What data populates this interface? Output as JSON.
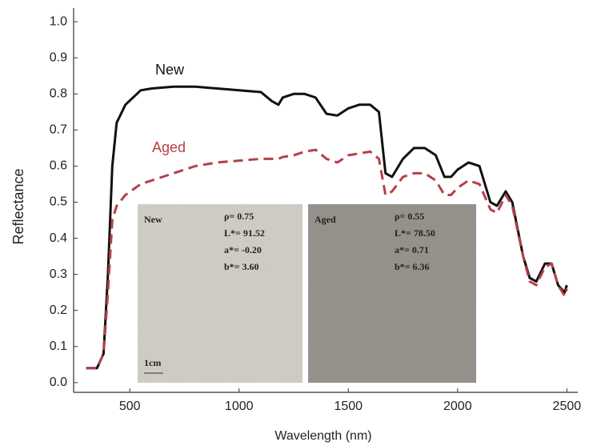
{
  "chart_data": {
    "type": "line",
    "x_label": "Wavelength (nm)",
    "y_label": "Reflectance",
    "xlim": [
      243,
      2550
    ],
    "ylim": [
      -0.027,
      1.038
    ],
    "xticks": [
      500,
      1000,
      1500,
      2000,
      2500
    ],
    "yticks": [
      {
        "value": 0,
        "label": "0.0"
      },
      0.1,
      0.2,
      0.3,
      0.4,
      0.5,
      0.6,
      0.7,
      0.8,
      0.9,
      {
        "value": 1,
        "label": "1.0"
      }
    ],
    "x": [
      300,
      350,
      380,
      400,
      420,
      440,
      480,
      550,
      600,
      700,
      800,
      900,
      1000,
      1100,
      1150,
      1180,
      1200,
      1250,
      1300,
      1350,
      1400,
      1450,
      1500,
      1550,
      1600,
      1640,
      1670,
      1700,
      1750,
      1800,
      1850,
      1900,
      1940,
      1970,
      2000,
      2050,
      2100,
      2150,
      2180,
      2220,
      2250,
      2300,
      2330,
      2360,
      2400,
      2430,
      2460,
      2490,
      2500
    ],
    "series": [
      {
        "name": "New",
        "color": "#111111",
        "linestyle": "solid",
        "values": [
          0.04,
          0.04,
          0.08,
          0.3,
          0.6,
          0.72,
          0.77,
          0.81,
          0.815,
          0.82,
          0.82,
          0.815,
          0.81,
          0.805,
          0.78,
          0.77,
          0.79,
          0.8,
          0.8,
          0.79,
          0.745,
          0.74,
          0.76,
          0.77,
          0.77,
          0.75,
          0.58,
          0.57,
          0.62,
          0.65,
          0.65,
          0.63,
          0.57,
          0.57,
          0.59,
          0.61,
          0.6,
          0.5,
          0.49,
          0.53,
          0.5,
          0.35,
          0.29,
          0.28,
          0.33,
          0.33,
          0.27,
          0.25,
          0.27
        ]
      },
      {
        "name": "Aged",
        "color": "#b5404a",
        "linestyle": "dashed",
        "values": [
          0.04,
          0.04,
          0.08,
          0.25,
          0.45,
          0.49,
          0.52,
          0.55,
          0.56,
          0.58,
          0.6,
          0.61,
          0.615,
          0.62,
          0.62,
          0.62,
          0.625,
          0.63,
          0.64,
          0.645,
          0.62,
          0.61,
          0.63,
          0.635,
          0.64,
          0.62,
          0.52,
          0.53,
          0.57,
          0.58,
          0.58,
          0.56,
          0.52,
          0.52,
          0.54,
          0.56,
          0.55,
          0.48,
          0.47,
          0.52,
          0.49,
          0.35,
          0.28,
          0.27,
          0.32,
          0.33,
          0.27,
          0.24,
          0.26
        ]
      }
    ],
    "insets": [
      {
        "title": "New",
        "lines": [
          "ρ= 0.75",
          "L*= 91.52",
          "a*= -0.20",
          "b*= 3.60"
        ],
        "scale": "1cm"
      },
      {
        "title": "Aged",
        "lines": [
          "ρ= 0.55",
          "L*= 78.50",
          "a*= 0.71",
          "b*= 6.36"
        ]
      }
    ]
  }
}
